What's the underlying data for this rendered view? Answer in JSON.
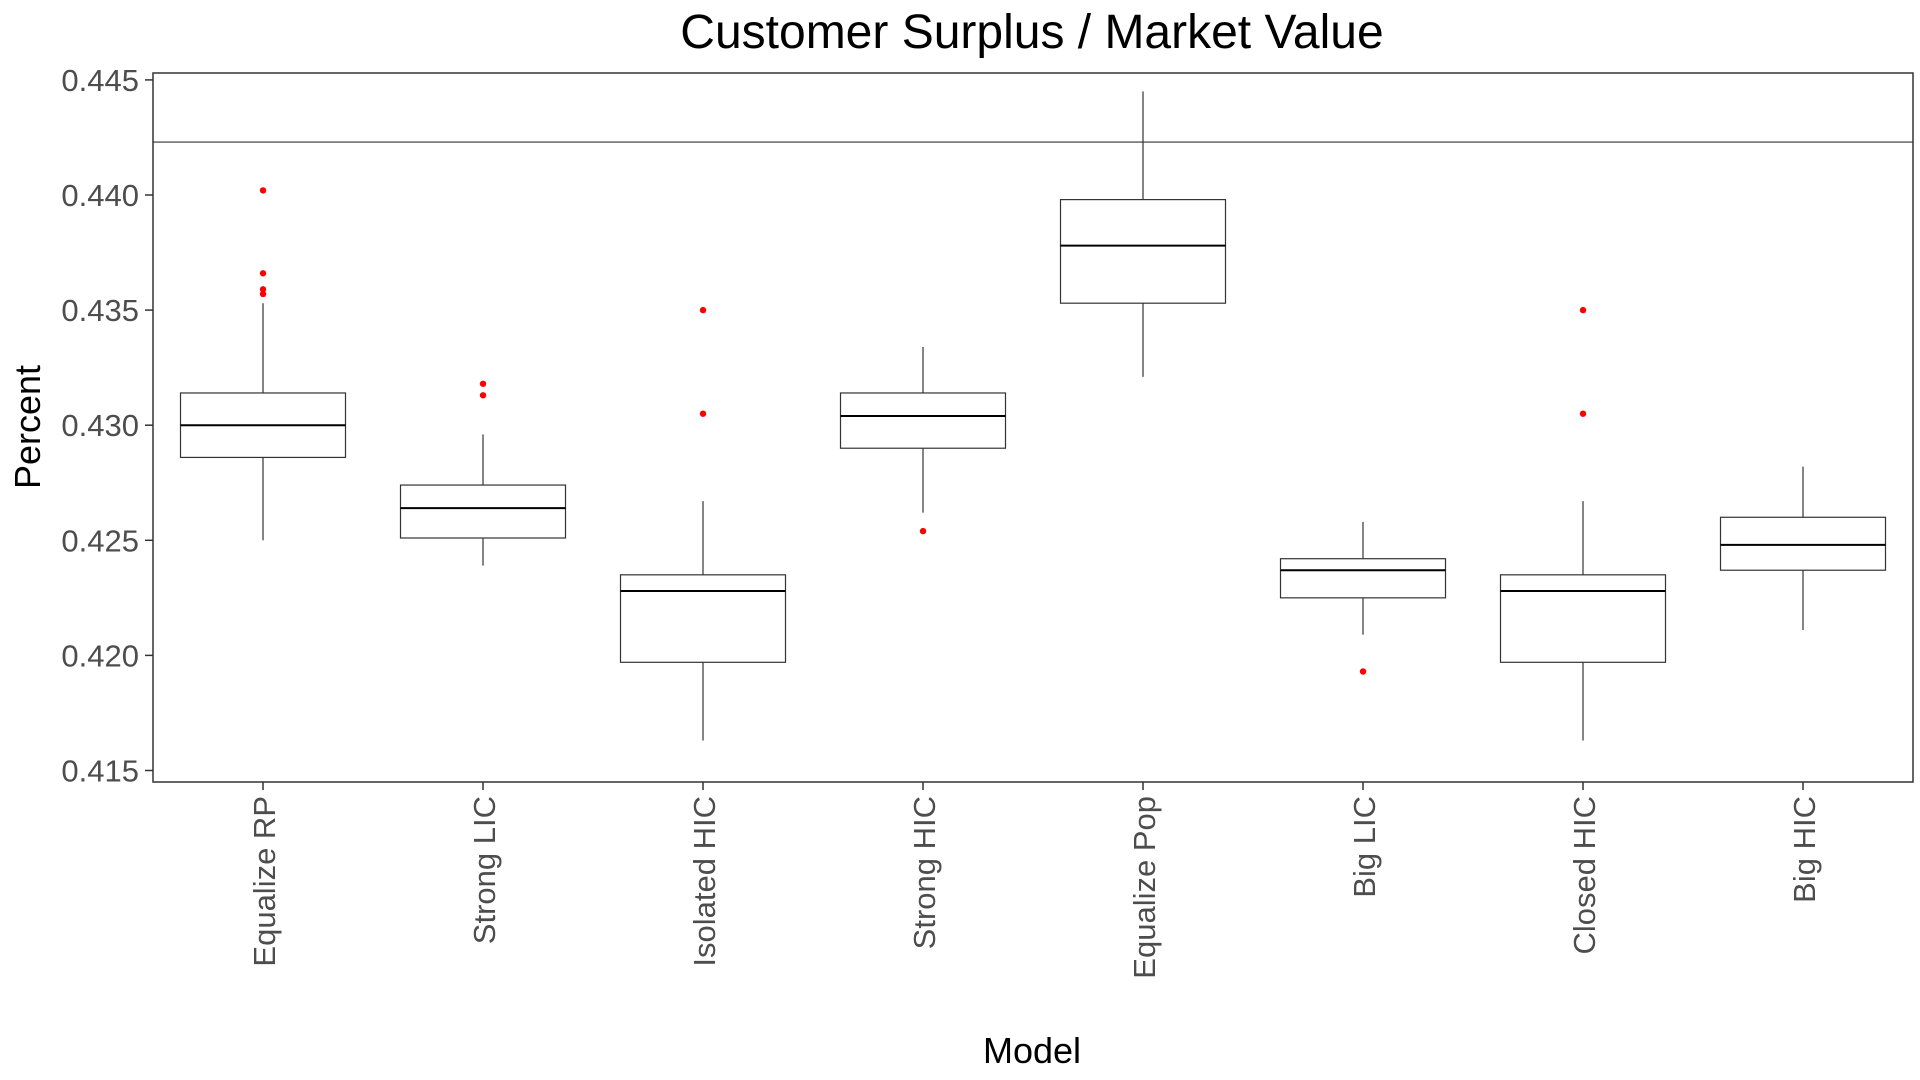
{
  "chart_data": {
    "type": "boxplot",
    "title": "Customer Surplus / Market Value",
    "xlabel": "Model",
    "ylabel": "Percent",
    "ylim": [
      0.4145,
      0.4453
    ],
    "yticks": [
      "0.415",
      "0.420",
      "0.425",
      "0.430",
      "0.435",
      "0.440",
      "0.445"
    ],
    "ytick_values": [
      0.415,
      0.42,
      0.425,
      0.43,
      0.435,
      0.44,
      0.445
    ],
    "reference_line": 0.4423,
    "grid": false,
    "colors": {
      "box": "#333333",
      "outlier": "#ff0000",
      "axis": "#333333"
    },
    "categories": [
      "Equalize RP",
      "Strong LIC",
      "Isolated HIC",
      "Strong HIC",
      "Equalize Pop",
      "Big LIC",
      "Closed HIC",
      "Big HIC"
    ],
    "boxes": [
      {
        "min": 0.425,
        "q1": 0.4286,
        "median": 0.43,
        "q3": 0.4314,
        "max": 0.4353,
        "outliers": [
          0.4402,
          0.4366,
          0.4359,
          0.4357
        ]
      },
      {
        "min": 0.4239,
        "q1": 0.4251,
        "median": 0.4264,
        "q3": 0.4274,
        "max": 0.4296,
        "outliers": [
          0.4318,
          0.4313
        ]
      },
      {
        "min": 0.4163,
        "q1": 0.4197,
        "median": 0.4228,
        "q3": 0.4235,
        "max": 0.4267,
        "outliers": [
          0.435,
          0.4305
        ]
      },
      {
        "min": 0.4262,
        "q1": 0.429,
        "median": 0.4304,
        "q3": 0.4314,
        "max": 0.4334,
        "outliers": [
          0.4254
        ]
      },
      {
        "min": 0.4321,
        "q1": 0.4353,
        "median": 0.4378,
        "q3": 0.4398,
        "max": 0.4445,
        "outliers": []
      },
      {
        "min": 0.4209,
        "q1": 0.4225,
        "median": 0.4237,
        "q3": 0.4242,
        "max": 0.4258,
        "outliers": [
          0.4193
        ]
      },
      {
        "min": 0.4163,
        "q1": 0.4197,
        "median": 0.4228,
        "q3": 0.4235,
        "max": 0.4267,
        "outliers": [
          0.435,
          0.4305
        ]
      },
      {
        "min": 0.4211,
        "q1": 0.4237,
        "median": 0.4248,
        "q3": 0.426,
        "max": 0.4282,
        "outliers": []
      }
    ]
  }
}
